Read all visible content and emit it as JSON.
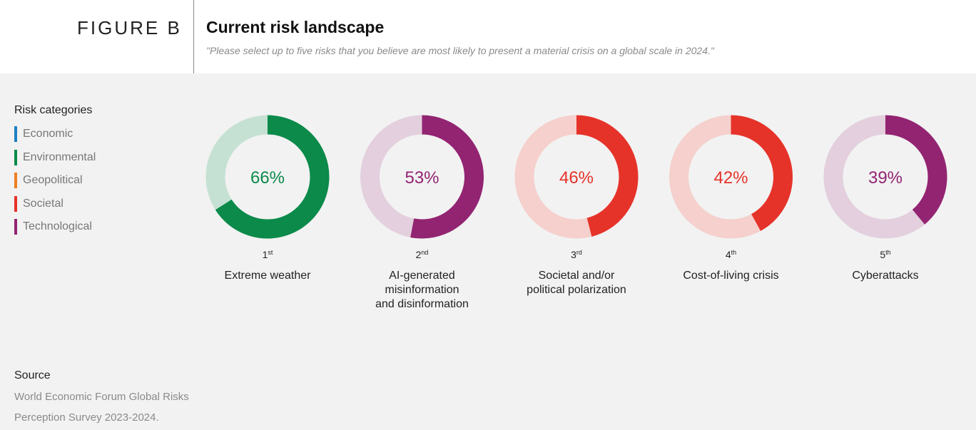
{
  "header": {
    "figure_label": "FIGURE B",
    "title": "Current risk landscape",
    "subtitle": "\"Please select up to five risks that you believe are most likely to present a material crisis on a global scale in 2024.\""
  },
  "legend": {
    "title": "Risk categories",
    "items": [
      {
        "label": "Economic",
        "color": "#1f7fc4"
      },
      {
        "label": "Environmental",
        "color": "#0b8a4a"
      },
      {
        "label": "Geopolitical",
        "color": "#ee7f22"
      },
      {
        "label": "Societal",
        "color": "#e6332a"
      },
      {
        "label": "Technological",
        "color": "#922472"
      }
    ]
  },
  "chart_data": {
    "type": "pie",
    "subtype": "donut",
    "title": "Current risk landscape",
    "values": [
      66,
      53,
      46,
      42,
      39
    ],
    "unit": "%",
    "items": [
      {
        "rank": "1",
        "rank_suffix": "st",
        "label_lines": [
          "Extreme weather"
        ],
        "value": 66,
        "value_label": "66%",
        "category": "Environmental",
        "color": "#0b8a4a",
        "track_color": "#c5e1d3"
      },
      {
        "rank": "2",
        "rank_suffix": "nd",
        "label_lines": [
          "AI-generated",
          "misinformation",
          "and disinformation"
        ],
        "value": 53,
        "value_label": "53%",
        "category": "Technological",
        "color": "#922472",
        "track_color": "#e3cfdd"
      },
      {
        "rank": "3",
        "rank_suffix": "rd",
        "label_lines": [
          "Societal and/or",
          "political polarization"
        ],
        "value": 46,
        "value_label": "46%",
        "category": "Societal",
        "color": "#e6332a",
        "track_color": "#f5d0cd"
      },
      {
        "rank": "4",
        "rank_suffix": "th",
        "label_lines": [
          "Cost-of-living crisis"
        ],
        "value": 42,
        "value_label": "42%",
        "category": "Societal",
        "color": "#e6332a",
        "track_color": "#f5d0cd"
      },
      {
        "rank": "5",
        "rank_suffix": "th",
        "label_lines": [
          "Cyberattacks"
        ],
        "value": 39,
        "value_label": "39%",
        "category": "Technological",
        "color": "#922472",
        "track_color": "#e3cfdd"
      }
    ]
  },
  "source": {
    "title": "Source",
    "text": "World Economic Forum Global Risks Perception Survey 2023-2024."
  }
}
